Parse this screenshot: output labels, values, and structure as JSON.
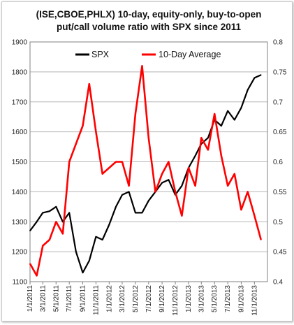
{
  "chart_data": {
    "type": "line",
    "title": "(ISE,CBOE,PHLX) 10-day, equity-only, buy-to-open",
    "subtitle": "put/call volume ratio with SPX since 2011",
    "x_dates": [
      "2011-01-01",
      "2011-02-01",
      "2011-03-01",
      "2011-04-01",
      "2011-05-01",
      "2011-06-01",
      "2011-07-01",
      "2011-08-01",
      "2011-09-01",
      "2011-10-01",
      "2011-11-01",
      "2011-12-01",
      "2012-01-01",
      "2012-02-01",
      "2012-03-01",
      "2012-04-01",
      "2012-05-01",
      "2012-06-01",
      "2012-07-01",
      "2012-08-01",
      "2012-09-01",
      "2012-10-01",
      "2012-11-01",
      "2012-12-01",
      "2013-01-01",
      "2013-02-01",
      "2013-03-01",
      "2013-04-01",
      "2013-05-01",
      "2013-06-01",
      "2013-07-01",
      "2013-08-01",
      "2013-09-01",
      "2013-10-01",
      "2013-11-01",
      "2013-12-01"
    ],
    "x_tick_labels": [
      "1/1/2011",
      "3/1/2011",
      "5/1/2011",
      "7/1/2011",
      "9/1/2011",
      "11/1/2011",
      "1/1/2012",
      "3/1/2012",
      "5/1/2012",
      "7/1/2012",
      "9/1/2012",
      "11/1/2012",
      "1/1/2013",
      "3/1/2013",
      "5/1/2013",
      "7/1/2013",
      "9/1/2013",
      "11/1/2013"
    ],
    "y_left": {
      "lim": [
        1100,
        1900
      ],
      "ticks": [
        "1100",
        "1200",
        "1300",
        "1400",
        "1500",
        "1600",
        "1700",
        "1800",
        "1900"
      ]
    },
    "y_right": {
      "lim": [
        0.4,
        0.8
      ],
      "ticks": [
        "0.4",
        "0.45",
        "0.5",
        "0.55",
        "0.6",
        "0.65",
        "0.7",
        "0.75",
        "0.8"
      ]
    },
    "grid": true,
    "legend_position": "top",
    "series": [
      {
        "name": "SPX",
        "axis": "left",
        "color": "#000000",
        "values": [
          1270,
          1300,
          1330,
          1335,
          1350,
          1300,
          1330,
          1200,
          1130,
          1170,
          1250,
          1240,
          1290,
          1350,
          1390,
          1400,
          1330,
          1330,
          1370,
          1400,
          1430,
          1440,
          1390,
          1420,
          1480,
          1520,
          1560,
          1580,
          1640,
          1620,
          1670,
          1640,
          1680,
          1740,
          1780,
          1790
        ]
      },
      {
        "name": "10-Day Average",
        "axis": "right",
        "color": "#ff0000",
        "values": [
          0.43,
          0.41,
          0.46,
          0.47,
          0.5,
          0.48,
          0.6,
          0.63,
          0.66,
          0.73,
          0.65,
          0.58,
          0.59,
          0.6,
          0.6,
          0.56,
          0.68,
          0.76,
          0.64,
          0.55,
          0.58,
          0.6,
          0.55,
          0.51,
          0.59,
          0.56,
          0.64,
          0.62,
          0.68,
          0.61,
          0.56,
          0.58,
          0.52,
          0.55,
          0.51,
          0.47
        ]
      }
    ]
  }
}
